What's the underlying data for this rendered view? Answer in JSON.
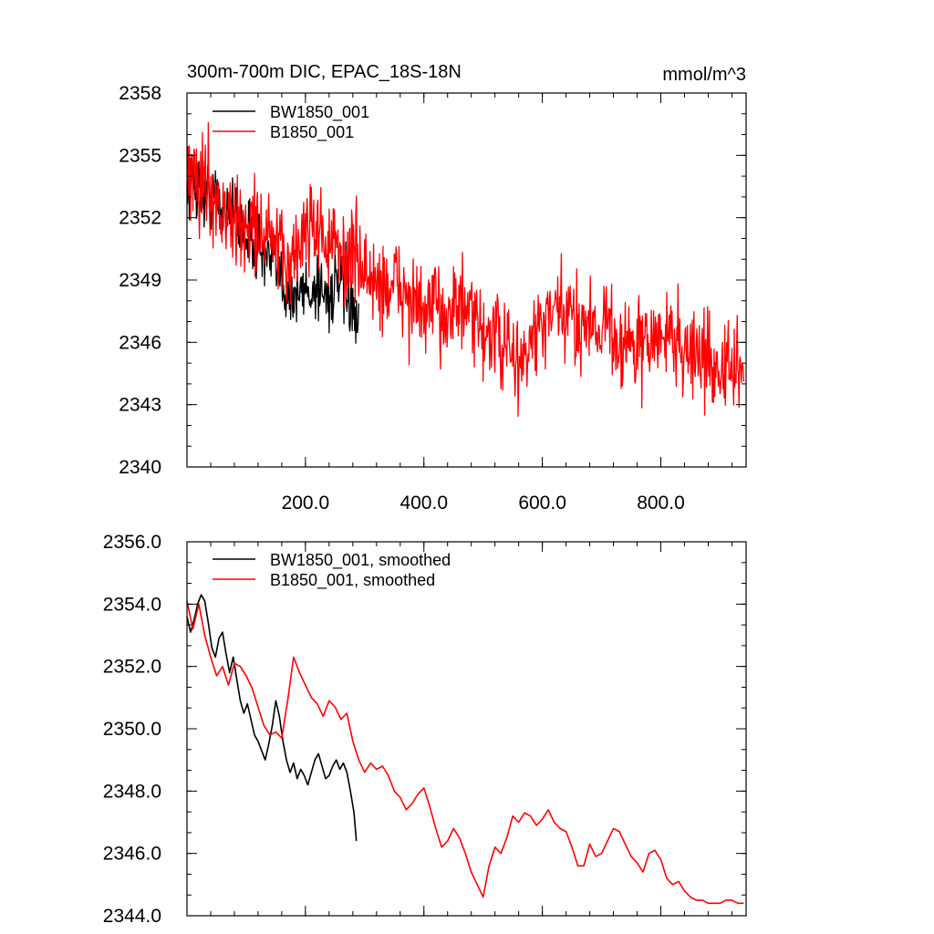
{
  "colors": {
    "bw": "#000000",
    "b": "#ff0000",
    "axis": "#000000"
  },
  "chart_data": [
    {
      "type": "line",
      "title": "300m-700m DIC, EPAC_18S-18N",
      "units": "mmol/m^3",
      "xlim": [
        0,
        944
      ],
      "ylim": [
        2340,
        2358
      ],
      "xticks": [
        200,
        400,
        600,
        800
      ],
      "xtick_labels": [
        "200.0",
        "400.0",
        "600.0",
        "800.0"
      ],
      "yticks": [
        2340,
        2343,
        2346,
        2349,
        2352,
        2355,
        2358
      ],
      "ytick_labels": [
        "2340",
        "2343",
        "2346",
        "2349",
        "2352",
        "2355",
        "2358"
      ],
      "legend": "top-left",
      "series": [
        {
          "name": "BW1850_001",
          "color": "#000000",
          "x": [
            0,
            10,
            20,
            30,
            40,
            50,
            60,
            70,
            80,
            90,
            100,
            110,
            120,
            130,
            140,
            150,
            160,
            170,
            180,
            190,
            200,
            210,
            220,
            230,
            240,
            250,
            260,
            270,
            280,
            285,
            290
          ],
          "y": [
            2353.5,
            2353.8,
            2353.4,
            2353.0,
            2353.2,
            2352.8,
            2352.3,
            2352.9,
            2352.0,
            2351.6,
            2351.2,
            2351.0,
            2350.6,
            2350.2,
            2349.8,
            2349.5,
            2349.0,
            2348.6,
            2348.2,
            2348.3,
            2348.6,
            2348.4,
            2348.8,
            2348.5,
            2348.2,
            2348.6,
            2348.7,
            2348.4,
            2347.6,
            2346.5,
            2346.8
          ]
        },
        {
          "name": "B1850_001",
          "color": "#ff0000",
          "x": [
            0,
            10,
            20,
            30,
            40,
            50,
            60,
            70,
            80,
            90,
            100,
            110,
            120,
            130,
            140,
            150,
            160,
            170,
            180,
            190,
            200,
            210,
            220,
            230,
            240,
            250,
            260,
            270,
            280,
            290,
            300,
            310,
            320,
            330,
            340,
            350,
            360,
            370,
            380,
            390,
            400,
            410,
            420,
            430,
            440,
            450,
            460,
            470,
            480,
            490,
            500,
            510,
            520,
            530,
            540,
            550,
            560,
            570,
            580,
            590,
            600,
            610,
            620,
            630,
            640,
            650,
            660,
            670,
            680,
            690,
            700,
            710,
            720,
            730,
            740,
            750,
            760,
            770,
            780,
            790,
            800,
            810,
            820,
            830,
            840,
            850,
            860,
            870,
            880,
            890,
            900,
            910,
            920,
            930,
            940
          ],
          "y": [
            2353.5,
            2354.0,
            2353.6,
            2353.9,
            2353.4,
            2352.8,
            2352.2,
            2352.0,
            2351.8,
            2351.4,
            2351.6,
            2351.8,
            2351.6,
            2351.2,
            2351.0,
            2350.6,
            2350.0,
            2349.8,
            2350.2,
            2350.6,
            2351.6,
            2352.0,
            2351.6,
            2351.0,
            2350.8,
            2350.4,
            2350.2,
            2350.0,
            2350.4,
            2350.0,
            2349.4,
            2349.0,
            2348.7,
            2348.8,
            2348.6,
            2348.7,
            2348.8,
            2348.2,
            2348.0,
            2347.6,
            2347.3,
            2347.4,
            2347.6,
            2347.6,
            2347.5,
            2347.8,
            2347.8,
            2347.4,
            2347.0,
            2346.6,
            2346.6,
            2346.4,
            2346.2,
            2346.0,
            2345.6,
            2345.2,
            2345.0,
            2345.2,
            2345.9,
            2346.4,
            2346.8,
            2347.0,
            2347.2,
            2347.4,
            2347.2,
            2347.0,
            2347.0,
            2347.1,
            2347.0,
            2346.9,
            2347.1,
            2346.8,
            2346.4,
            2346.0,
            2346.0,
            2345.8,
            2345.9,
            2345.6,
            2346.2,
            2346.2,
            2346.0,
            2346.4,
            2346.4,
            2346.0,
            2345.6,
            2345.5,
            2345.6,
            2345.2,
            2345.0,
            2345.0,
            2344.8,
            2344.6,
            2344.7,
            2344.5,
            2344.4
          ]
        }
      ]
    },
    {
      "type": "line",
      "title": "",
      "xlim": [
        0,
        944
      ],
      "ylim": [
        2344,
        2356
      ],
      "yticks": [
        2344,
        2346,
        2348,
        2350,
        2352,
        2354,
        2356
      ],
      "ytick_labels": [
        "2344.0",
        "2346.0",
        "2348.0",
        "2350.0",
        "2352.0",
        "2354.0",
        "2356.0"
      ],
      "legend": "top-left",
      "series": [
        {
          "name": "BW1850_001, smoothed",
          "color": "#000000",
          "x": [
            0,
            6,
            12,
            18,
            24,
            30,
            36,
            42,
            48,
            54,
            60,
            66,
            72,
            78,
            84,
            90,
            96,
            102,
            108,
            114,
            120,
            126,
            132,
            138,
            144,
            150,
            156,
            162,
            168,
            174,
            180,
            186,
            192,
            198,
            204,
            210,
            216,
            222,
            228,
            234,
            240,
            246,
            252,
            258,
            264,
            270,
            276,
            282,
            286
          ],
          "y": [
            2353.6,
            2353.1,
            2353.5,
            2354.0,
            2354.3,
            2354.1,
            2353.4,
            2352.6,
            2352.3,
            2352.9,
            2353.1,
            2352.4,
            2351.8,
            2352.3,
            2351.6,
            2350.9,
            2350.5,
            2350.8,
            2350.3,
            2349.8,
            2349.6,
            2349.3,
            2349.0,
            2349.5,
            2350.1,
            2350.9,
            2350.4,
            2349.6,
            2349.0,
            2348.6,
            2348.9,
            2348.4,
            2348.7,
            2348.5,
            2348.2,
            2348.6,
            2349.0,
            2349.2,
            2348.8,
            2348.4,
            2348.5,
            2348.8,
            2349.0,
            2348.7,
            2348.9,
            2348.6,
            2348.0,
            2347.3,
            2346.4
          ]
        },
        {
          "name": "B1850_001, smoothed",
          "color": "#ff0000",
          "x": [
            0,
            10,
            20,
            30,
            40,
            50,
            60,
            70,
            80,
            90,
            100,
            110,
            120,
            130,
            140,
            150,
            160,
            170,
            180,
            190,
            200,
            210,
            220,
            230,
            240,
            250,
            260,
            270,
            280,
            290,
            300,
            310,
            320,
            330,
            340,
            350,
            360,
            370,
            380,
            390,
            400,
            410,
            420,
            430,
            440,
            450,
            460,
            470,
            480,
            490,
            500,
            510,
            520,
            530,
            540,
            550,
            560,
            570,
            580,
            590,
            600,
            610,
            620,
            630,
            640,
            650,
            660,
            670,
            680,
            690,
            700,
            710,
            720,
            730,
            740,
            750,
            760,
            770,
            780,
            790,
            800,
            810,
            820,
            830,
            840,
            850,
            860,
            870,
            880,
            890,
            900,
            910,
            920,
            930,
            940
          ],
          "y": [
            2354.1,
            2353.2,
            2354.0,
            2353.0,
            2352.3,
            2351.7,
            2352.0,
            2351.4,
            2352.1,
            2352.0,
            2351.7,
            2351.3,
            2350.7,
            2350.1,
            2349.8,
            2349.9,
            2349.7,
            2350.9,
            2352.3,
            2351.8,
            2351.4,
            2351.0,
            2350.8,
            2350.4,
            2350.9,
            2350.7,
            2350.3,
            2350.5,
            2349.6,
            2349.0,
            2348.6,
            2348.9,
            2348.7,
            2348.8,
            2348.5,
            2348.0,
            2347.8,
            2347.4,
            2347.6,
            2347.9,
            2348.1,
            2347.5,
            2346.8,
            2346.2,
            2346.4,
            2346.8,
            2346.5,
            2346.0,
            2345.4,
            2345.0,
            2344.6,
            2345.6,
            2346.2,
            2346.0,
            2346.5,
            2347.2,
            2347.0,
            2347.3,
            2347.2,
            2346.9,
            2347.1,
            2347.4,
            2347.0,
            2346.8,
            2346.7,
            2346.2,
            2345.6,
            2345.6,
            2346.3,
            2345.9,
            2346.0,
            2346.4,
            2346.8,
            2346.7,
            2346.3,
            2345.9,
            2345.7,
            2345.4,
            2346.0,
            2346.1,
            2345.8,
            2345.2,
            2345.0,
            2345.1,
            2344.8,
            2344.6,
            2344.5,
            2344.5,
            2344.4,
            2344.4,
            2344.4,
            2344.5,
            2344.5,
            2344.4,
            2344.4
          ]
        }
      ]
    }
  ]
}
